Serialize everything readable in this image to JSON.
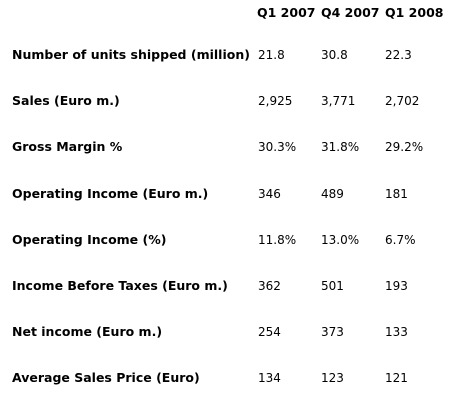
{
  "table": {
    "columns": [
      "Q1 2007",
      "Q4 2007",
      "Q1 2008"
    ],
    "rows": [
      {
        "label": "Number of units shipped (million)",
        "values": [
          "21.8",
          "30.8",
          "22.3"
        ]
      },
      {
        "label": "Sales (Euro m.)",
        "values": [
          "2,925",
          "3,771",
          "2,702"
        ]
      },
      {
        "label": "Gross Margin %",
        "values": [
          "30.3%",
          "31.8%",
          "29.2%"
        ]
      },
      {
        "label": "Operating Income (Euro m.)",
        "values": [
          "346",
          "489",
          "181"
        ]
      },
      {
        "label": "Operating Income (%)",
        "values": [
          "11.8%",
          "13.0%",
          "6.7%"
        ]
      },
      {
        "label": "Income Before Taxes (Euro m.)",
        "values": [
          "362",
          "501",
          "193"
        ]
      },
      {
        "label": "Net income (Euro m.)",
        "values": [
          "254",
          "373",
          "133"
        ]
      },
      {
        "label": "Average Sales Price (Euro)",
        "values": [
          "134",
          "123",
          "121"
        ]
      }
    ]
  }
}
